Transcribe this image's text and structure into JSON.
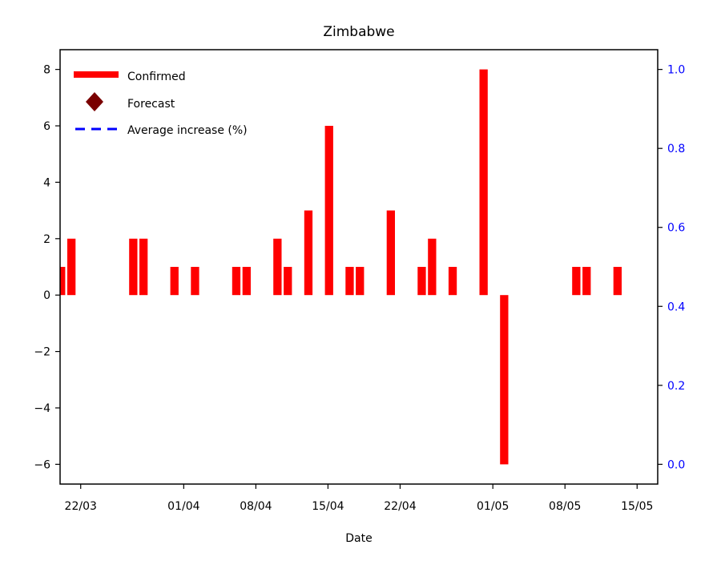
{
  "chart_data": {
    "type": "bar",
    "title": "Zimbabwe",
    "xlabel": "Date",
    "ylabel": "",
    "ylabel_right": "",
    "x_type": "date",
    "year": 2020,
    "xlim": [
      "2020-03-20",
      "2020-05-17"
    ],
    "ylim": [
      -6.7,
      8.7
    ],
    "ylim_right": [
      -0.05,
      1.05
    ],
    "x_ticks": [
      "2020-03-22",
      "2020-04-01",
      "2020-04-08",
      "2020-04-15",
      "2020-04-22",
      "2020-05-01",
      "2020-05-08",
      "2020-05-15"
    ],
    "x_tick_labels": [
      "22/03",
      "01/04",
      "08/04",
      "15/04",
      "22/04",
      "01/05",
      "08/05",
      "15/05"
    ],
    "y_ticks": [
      -6,
      -4,
      -2,
      0,
      2,
      4,
      6,
      8
    ],
    "y_tick_labels": [
      "−6",
      "−4",
      "−2",
      "0",
      "2",
      "4",
      "6",
      "8"
    ],
    "y_right_ticks": [
      0.0,
      0.2,
      0.4,
      0.6,
      0.8,
      1.0
    ],
    "y_right_tick_labels": [
      "0.0",
      "0.2",
      "0.4",
      "0.6",
      "0.8",
      "1.0"
    ],
    "legend": {
      "placement": "top-left",
      "items": [
        {
          "label": "Confirmed",
          "marker": "thick-line",
          "color": "#ff0000"
        },
        {
          "label": "Forecast",
          "marker": "diamond",
          "color": "#7a0000"
        },
        {
          "label": "Average increase (%)",
          "marker": "dashed-line",
          "color": "#0000ff"
        }
      ]
    },
    "series": [
      {
        "name": "Confirmed",
        "color": "#ff0000",
        "points": [
          {
            "x": "2020-03-20",
            "y": 1
          },
          {
            "x": "2020-03-21",
            "y": 2
          },
          {
            "x": "2020-03-27",
            "y": 2
          },
          {
            "x": "2020-03-28",
            "y": 2
          },
          {
            "x": "2020-03-31",
            "y": 1
          },
          {
            "x": "2020-04-02",
            "y": 1
          },
          {
            "x": "2020-04-06",
            "y": 1
          },
          {
            "x": "2020-04-07",
            "y": 1
          },
          {
            "x": "2020-04-10",
            "y": 2
          },
          {
            "x": "2020-04-11",
            "y": 1
          },
          {
            "x": "2020-04-13",
            "y": 3
          },
          {
            "x": "2020-04-15",
            "y": 6
          },
          {
            "x": "2020-04-17",
            "y": 1
          },
          {
            "x": "2020-04-18",
            "y": 1
          },
          {
            "x": "2020-04-21",
            "y": 3
          },
          {
            "x": "2020-04-24",
            "y": 1
          },
          {
            "x": "2020-04-25",
            "y": 2
          },
          {
            "x": "2020-04-27",
            "y": 1
          },
          {
            "x": "2020-04-30",
            "y": 8
          },
          {
            "x": "2020-05-02",
            "y": -6
          },
          {
            "x": "2020-05-09",
            "y": 1
          },
          {
            "x": "2020-05-10",
            "y": 1
          },
          {
            "x": "2020-05-13",
            "y": 1
          }
        ]
      }
    ],
    "colors": {
      "axis": "#000000",
      "right_axis": "#0000ff",
      "bars": "#ff0000"
    }
  }
}
